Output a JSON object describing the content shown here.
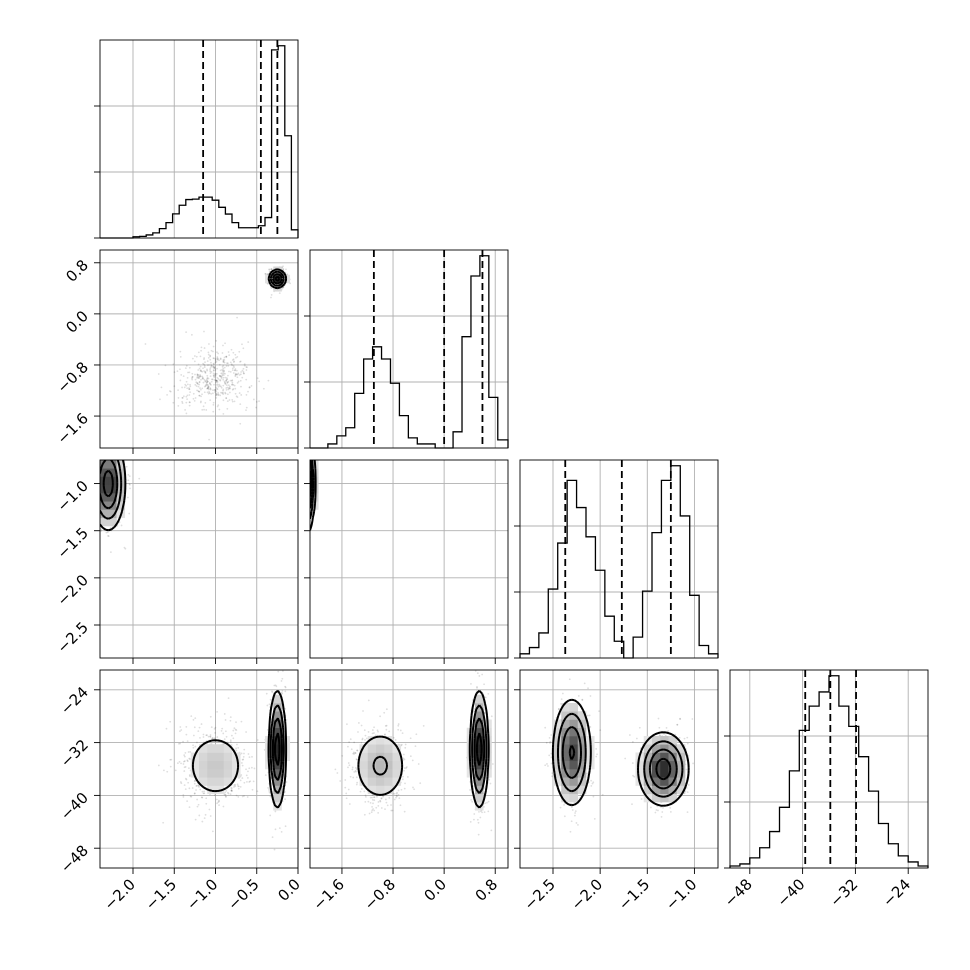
{
  "colors": {
    "background": "#ffffff",
    "axes": "#000000",
    "grid": "#b0b0b0",
    "samples": "#000000",
    "contour": "#000000"
  },
  "chart_data": {
    "type": "corner",
    "grid": true,
    "parameters": [
      {
        "range": [
          -2.4,
          0.0
        ],
        "ticks": [
          -2.0,
          -1.5,
          -1.0,
          -0.5,
          0.0
        ],
        "tick_labels": [
          "−2.0",
          "−1.5",
          "−1.0",
          "−0.5",
          "0.0"
        ],
        "quantiles": [
          -1.15,
          -0.45,
          -0.25
        ],
        "histogram": {
          "edges": [
            -2.4,
            -2.32,
            -2.24,
            -2.16,
            -2.08,
            -2.0,
            -1.92,
            -1.84,
            -1.76,
            -1.68,
            -1.6,
            -1.52,
            -1.44,
            -1.36,
            -1.28,
            -1.2,
            -1.12,
            -1.04,
            -0.96,
            -0.88,
            -0.8,
            -0.72,
            -0.64,
            -0.56,
            -0.48,
            -0.4,
            -0.32,
            -0.24,
            -0.16,
            -0.08,
            0.0
          ],
          "counts": [
            0,
            0,
            0,
            0,
            0,
            0.006,
            0.008,
            0.015,
            0.025,
            0.046,
            0.075,
            0.118,
            0.16,
            0.188,
            0.19,
            0.2,
            0.2,
            0.185,
            0.15,
            0.117,
            0.075,
            0.05,
            0.05,
            0.05,
            0.06,
            0.1,
            0.92,
            0.94,
            0.5,
            0.04
          ]
        }
      },
      {
        "range": [
          -2.1,
          1.0
        ],
        "ticks": [
          -1.6,
          -0.8,
          0.0,
          0.8
        ],
        "tick_labels": [
          "−1.6",
          "−0.8",
          "0.0",
          "0.8"
        ],
        "quantiles": [
          -1.1,
          0.0,
          0.6
        ],
        "histogram": {
          "edges": [
            -2.1,
            -1.96,
            -1.82,
            -1.68,
            -1.54,
            -1.4,
            -1.26,
            -1.12,
            -0.98,
            -0.84,
            -0.7,
            -0.56,
            -0.42,
            -0.28,
            -0.14,
            0.0,
            0.14,
            0.28,
            0.42,
            0.56,
            0.7,
            0.84,
            1.0
          ],
          "counts": [
            0,
            0,
            0.02,
            0.06,
            0.1,
            0.27,
            0.44,
            0.5,
            0.44,
            0.32,
            0.16,
            0.05,
            0.02,
            0.02,
            0.0,
            0.0,
            0.08,
            0.55,
            0.85,
            0.95,
            0.25,
            0.04
          ]
        }
      },
      {
        "range": [
          -2.85,
          -0.75
        ],
        "ticks": [
          -2.5,
          -2.0,
          -1.5,
          -1.0
        ],
        "tick_labels": [
          "−2.5",
          "−2.0",
          "−1.5",
          "−1.0"
        ],
        "quantiles": [
          -2.37,
          -1.77,
          -1.25
        ],
        "histogram": {
          "edges": [
            -2.85,
            -2.75,
            -2.65,
            -2.55,
            -2.45,
            -2.35,
            -2.25,
            -2.15,
            -2.05,
            -1.95,
            -1.85,
            -1.75,
            -1.65,
            -1.55,
            -1.45,
            -1.35,
            -1.25,
            -1.15,
            -1.05,
            -0.95,
            -0.85,
            -0.75
          ],
          "counts": [
            0.02,
            0.05,
            0.12,
            0.33,
            0.55,
            0.85,
            0.72,
            0.58,
            0.42,
            0.2,
            0.08,
            0.0,
            0.1,
            0.32,
            0.6,
            0.85,
            0.92,
            0.68,
            0.3,
            0.06,
            0.02
          ]
        }
      },
      {
        "range": [
          -51.0,
          -21.0
        ],
        "ticks": [
          -48,
          -40,
          -32,
          -24
        ],
        "tick_labels": [
          "−48",
          "−40",
          "−32",
          "−24"
        ],
        "quantiles": [
          -39.6,
          -35.8,
          -31.9
        ],
        "histogram": {
          "edges": [
            -51.0,
            -49.5,
            -48.0,
            -46.5,
            -45.0,
            -43.5,
            -42.0,
            -40.5,
            -39.0,
            -37.5,
            -36.0,
            -34.5,
            -33.0,
            -31.5,
            -30.0,
            -28.5,
            -27.0,
            -25.5,
            -24.0,
            -22.5,
            -21.0
          ],
          "counts": [
            0.01,
            0.02,
            0.05,
            0.1,
            0.18,
            0.3,
            0.48,
            0.68,
            0.8,
            0.87,
            0.95,
            0.8,
            0.7,
            0.55,
            0.38,
            0.22,
            0.12,
            0.06,
            0.03,
            0.01
          ]
        }
      }
    ],
    "modes": [
      {
        "mean": [
          -1.0,
          -1.0,
          -1.3,
          -35.5
        ],
        "sd": [
          0.22,
          0.24,
          0.13,
          3.1
        ],
        "weight": 0.45
      },
      {
        "mean": [
          -0.25,
          0.55,
          -2.27,
          -33.0
        ],
        "sd": [
          0.05,
          0.07,
          0.1,
          4.3
        ],
        "weight": 0.55
      }
    ],
    "cross_panel_modes": {
      "2-0": [
        {
          "mean": [
            -2.3,
            -1.0
          ],
          "sd": [
            0.1,
            0.24
          ],
          "weight": 0.5
        },
        {
          "mean": [
            -1.3,
            -0.25
          ],
          "sd": [
            0.13,
            0.06
          ],
          "weight": 0.5
        }
      ],
      "2-1": [
        {
          "mean": [
            -2.3,
            -1.0
          ],
          "sd": [
            0.1,
            0.24
          ],
          "weight": 0.5
        },
        {
          "mean": [
            -1.3,
            0.55
          ],
          "sd": [
            0.13,
            0.07
          ],
          "weight": 0.5
        }
      ],
      "3-2": [
        {
          "mean": [
            -2.3,
            -33.5
          ],
          "sd": [
            0.1,
            4.0
          ],
          "weight": 0.5
        },
        {
          "mean": [
            -1.33,
            -36.0
          ],
          "sd": [
            0.13,
            2.7
          ],
          "weight": 0.5
        }
      ]
    }
  }
}
